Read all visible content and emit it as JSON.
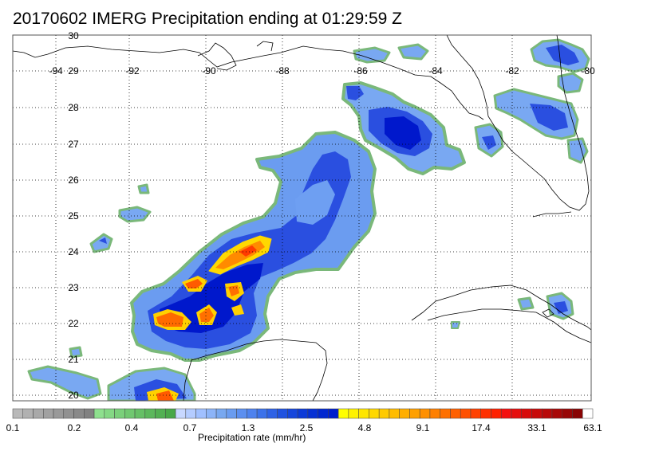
{
  "title": "20170602 IMERG Precipitation ending at 01:29:59 Z",
  "map": {
    "lon_labels": [
      "-94",
      "-92",
      "-90",
      "-88",
      "-86",
      "-84",
      "-82",
      "-80"
    ],
    "lat_labels": [
      "30",
      "29",
      "28",
      "27",
      "26",
      "25",
      "24",
      "23",
      "22",
      "21",
      "20"
    ],
    "grid": "dotted"
  },
  "colorbar": {
    "title": "Precipitation rate (mm/hr)",
    "tick_labels": [
      "0.1",
      "0.2",
      "0.4",
      "0.7",
      "1.3",
      "2.5",
      "4.8",
      "9.1",
      "17.4",
      "33.1",
      "63.1"
    ],
    "colors": [
      "#b9b9b9",
      "#b1b1b1",
      "#a9a9a9",
      "#a1a1a1",
      "#999999",
      "#919191",
      "#898989",
      "#818181",
      "#8ee08e",
      "#84d884",
      "#7ad07a",
      "#70c870",
      "#66c066",
      "#5cb85c",
      "#52b052",
      "#48a848",
      "#c8d8ff",
      "#b4ccff",
      "#a0c0ff",
      "#8cb4f8",
      "#78a8f0",
      "#6a9cf0",
      "#5c8ff0",
      "#4e82ee",
      "#3c72ea",
      "#2e62e6",
      "#2052e0",
      "#1646dc",
      "#0c3ad8",
      "#0630d4",
      "#0026d0",
      "#001ecc",
      "#ffff00",
      "#fff200",
      "#ffe600",
      "#ffd800",
      "#ffca00",
      "#ffbc00",
      "#ffae00",
      "#ffa000",
      "#ff9000",
      "#ff8000",
      "#ff7000",
      "#ff6000",
      "#ff5000",
      "#ff4000",
      "#ff3000",
      "#ff2000",
      "#f50f0f",
      "#e60d0d",
      "#d80b0b",
      "#c80a0a",
      "#b80808",
      "#a80707",
      "#980606",
      "#880404",
      "#ffffff"
    ]
  }
}
